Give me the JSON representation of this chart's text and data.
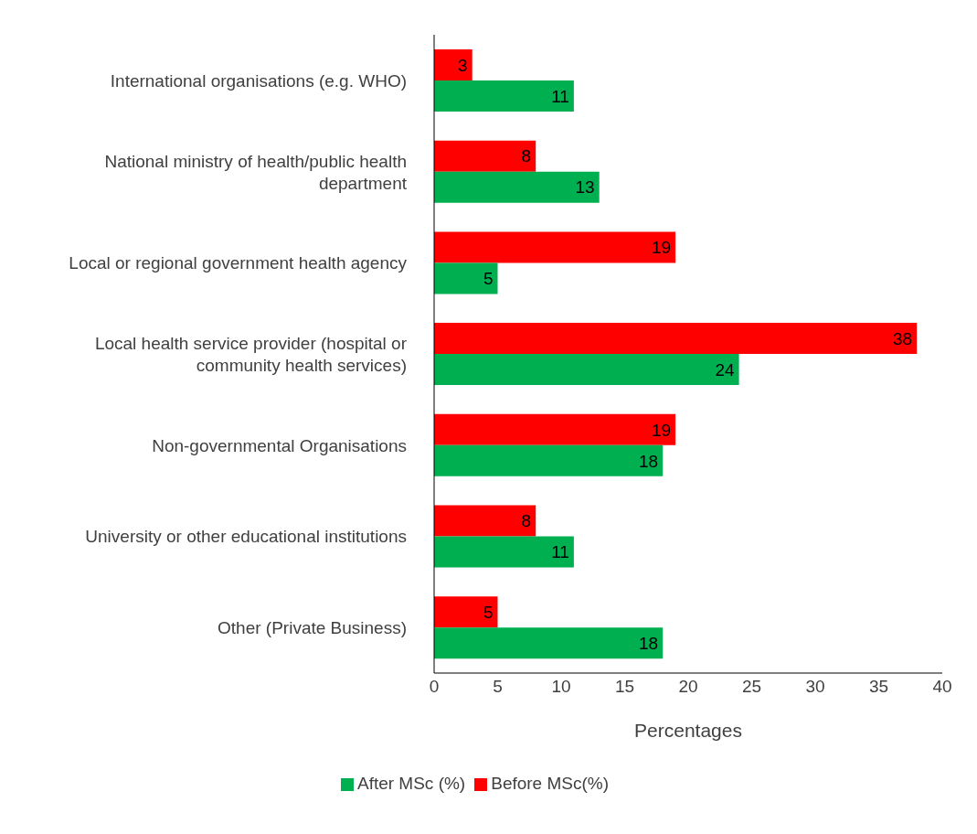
{
  "chart_data": {
    "type": "bar",
    "orientation": "horizontal",
    "xlabel": "Percentages",
    "categories": [
      "International organisations (e.g. WHO)",
      "National ministry of health/public health department",
      "Local or regional government health agency",
      "Local health service provider (hospital or community health services)",
      "Non-governmental Organisations",
      "University or other educational institutions",
      "Other (Private Business)"
    ],
    "series": [
      {
        "name": "Before MSc(%)",
        "color": "#ff0000",
        "values": [
          3,
          8,
          19,
          38,
          19,
          8,
          5
        ]
      },
      {
        "name": "After MSc (%)",
        "color": "#00b050",
        "values": [
          11,
          13,
          5,
          24,
          18,
          11,
          18
        ]
      }
    ],
    "xlim": [
      0,
      40
    ],
    "xticks": [
      0,
      5,
      10,
      15,
      20,
      25,
      30,
      35,
      40
    ],
    "data_labels": true,
    "legend": "bottom"
  }
}
